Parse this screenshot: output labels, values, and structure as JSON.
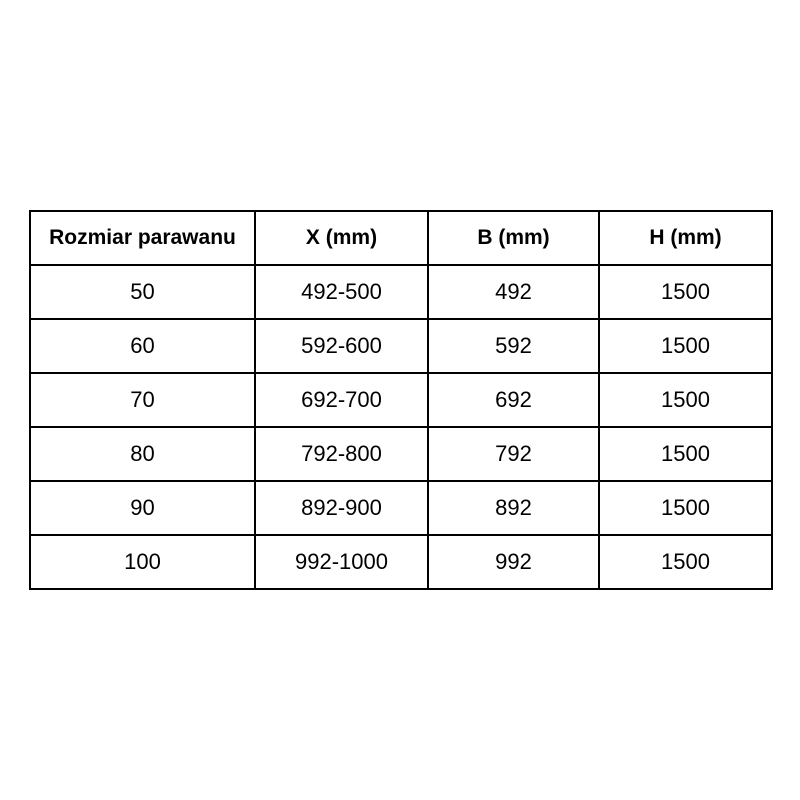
{
  "chart_data": {
    "type": "table",
    "title": "",
    "columns": [
      "Rozmiar parawanu",
      "X (mm)",
      "B (mm)",
      "H (mm)"
    ],
    "rows": [
      [
        "50",
        "492-500",
        "492",
        "1500"
      ],
      [
        "60",
        "592-600",
        "592",
        "1500"
      ],
      [
        "70",
        "692-700",
        "692",
        "1500"
      ],
      [
        "80",
        "792-800",
        "792",
        "1500"
      ],
      [
        "90",
        "892-900",
        "892",
        "1500"
      ],
      [
        "100",
        "992-1000",
        "992",
        "1500"
      ]
    ],
    "layout": {
      "header_row_bold": true,
      "grid": true,
      "cell_alignment": "center"
    }
  },
  "colors": {
    "background": "#ffffff",
    "border": "#000000",
    "text": "#000000"
  }
}
